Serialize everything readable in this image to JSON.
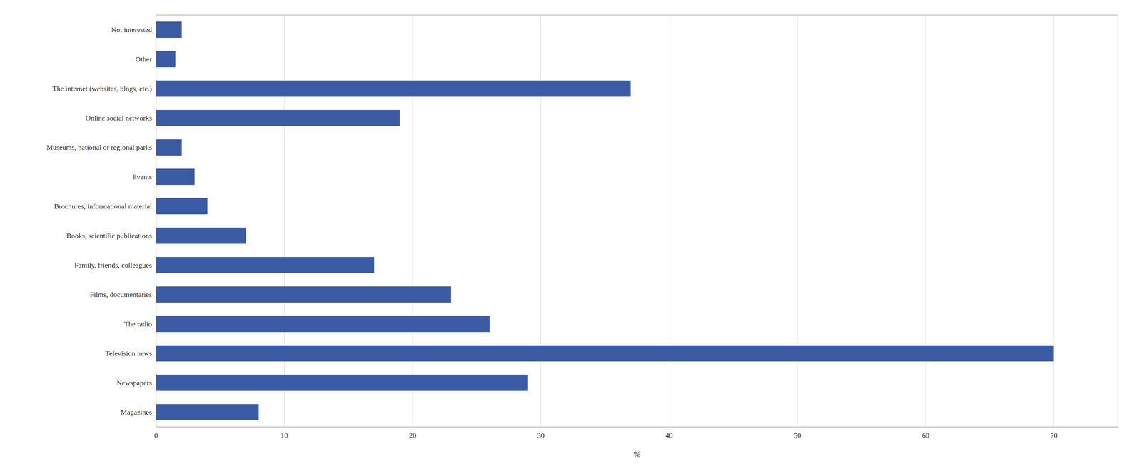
{
  "chart_data": {
    "type": "bar",
    "orientation": "horizontal",
    "categories": [
      "Not interested",
      "Other",
      "The internet (websites, blogs, etc.)",
      "Online social networks",
      "Museums, national or regional parks",
      "Events",
      "Brochures, informational material",
      "Books, scientific publications",
      "Family, friends, colleagues",
      "Films, documentaries",
      "The radio",
      "Television news",
      "Newspapers",
      "Magazines"
    ],
    "values": [
      2,
      1.5,
      37,
      19,
      2,
      3,
      4,
      7,
      17,
      23,
      26,
      70,
      29,
      8
    ],
    "color": "#3C5BA5",
    "x_label": "%",
    "xlim": [
      0,
      75
    ],
    "xticks": [
      0,
      10,
      20,
      30,
      40,
      50,
      60,
      70
    ],
    "grid": true
  }
}
